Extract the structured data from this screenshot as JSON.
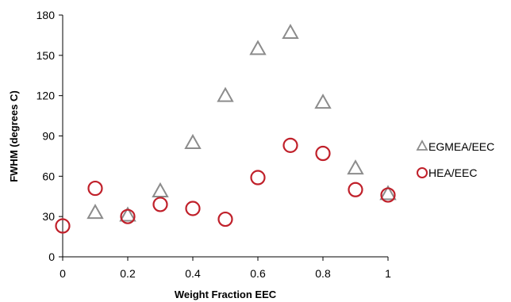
{
  "chart_data": {
    "type": "scatter",
    "title": "",
    "xlabel": "Weight Fraction EEC",
    "ylabel": "FWHM  (degrees C)",
    "xlim": [
      0,
      1
    ],
    "ylim": [
      0,
      180
    ],
    "xticks": [
      "0",
      "0.2",
      "0.4",
      "0.6",
      "0.8",
      "1"
    ],
    "yticks": [
      "0",
      "30",
      "60",
      "90",
      "120",
      "150",
      "180"
    ],
    "grid": false,
    "legend_position": "right",
    "series": [
      {
        "name": "EGMEA/EEC",
        "marker": "triangle",
        "color": "#8c8c8c",
        "x": [
          0.1,
          0.2,
          0.3,
          0.4,
          0.5,
          0.6,
          0.7,
          0.8,
          0.9,
          1.0
        ],
        "y": [
          33,
          31,
          49,
          85,
          120,
          155,
          167,
          115,
          66,
          47
        ]
      },
      {
        "name": "HEA/EEC",
        "marker": "circle",
        "color": "#c0202a",
        "x": [
          0,
          0.1,
          0.2,
          0.3,
          0.4,
          0.5,
          0.6,
          0.7,
          0.8,
          0.9,
          1.0
        ],
        "y": [
          23,
          51,
          30,
          39,
          36,
          28,
          59,
          83,
          77,
          50,
          46
        ]
      }
    ]
  }
}
